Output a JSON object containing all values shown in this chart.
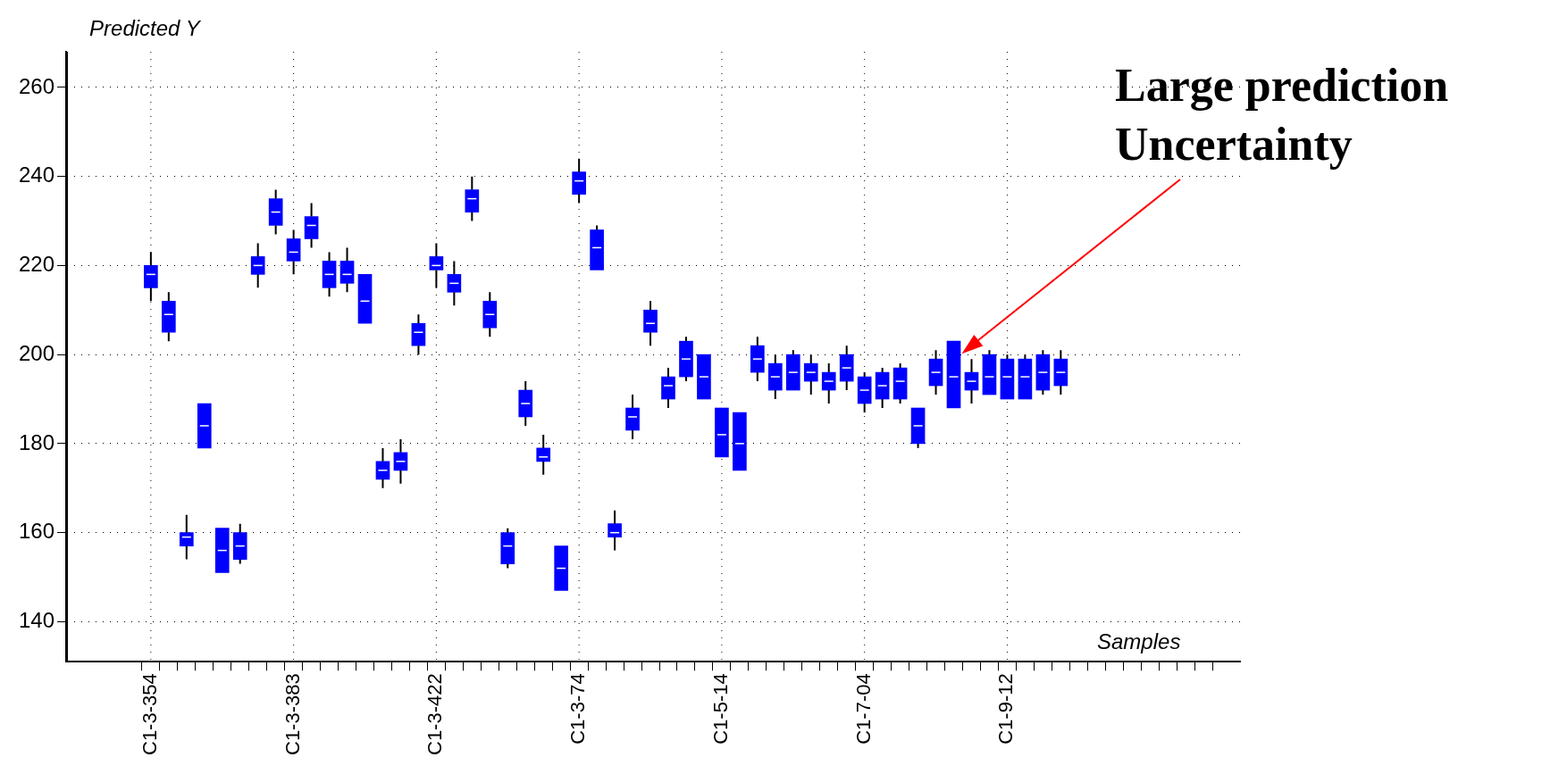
{
  "chart_data": {
    "type": "box",
    "ylabel": "Predicted Y",
    "xlabel": "Samples",
    "color": "#0000ff",
    "grid": true,
    "annotations": [
      "Large prediction Uncertainty"
    ],
    "categories": [
      "C1-3-354",
      null,
      null,
      null,
      null,
      null,
      null,
      null,
      "C1-3-383",
      null,
      null,
      null,
      null,
      null,
      null,
      null,
      "C1-3-422",
      null,
      null,
      null,
      null,
      null,
      null,
      null,
      "C1-3-74",
      null,
      null,
      null,
      null,
      null,
      null,
      null,
      "C1-5-14",
      null,
      null,
      null,
      null,
      null,
      null,
      null,
      "C1-7-04",
      null,
      null,
      null,
      null,
      null,
      null,
      null,
      "C1-9-12",
      null,
      null,
      null
    ],
    "ylim": [
      131,
      268
    ],
    "yticks": [
      140,
      160,
      180,
      200,
      220,
      240,
      260
    ],
    "boxes": [
      {
        "low": 212,
        "q1": 215,
        "median": 218,
        "q3": 220,
        "high": 223
      },
      {
        "low": 203,
        "q1": 205,
        "median": 209,
        "q3": 212,
        "high": 214
      },
      {
        "low": 154,
        "q1": 157,
        "median": 159,
        "q3": 160,
        "high": 164
      },
      {
        "low": 179,
        "q1": 179,
        "median": 184,
        "q3": 189,
        "high": 189
      },
      {
        "low": 151,
        "q1": 151,
        "median": 156,
        "q3": 161,
        "high": 161
      },
      {
        "low": 153,
        "q1": 154,
        "median": 157,
        "q3": 160,
        "high": 162
      },
      {
        "low": 215,
        "q1": 218,
        "median": 220,
        "q3": 222,
        "high": 225
      },
      {
        "low": 227,
        "q1": 229,
        "median": 232,
        "q3": 235,
        "high": 237
      },
      {
        "low": 218,
        "q1": 221,
        "median": 223,
        "q3": 226,
        "high": 228
      },
      {
        "low": 224,
        "q1": 226,
        "median": 229,
        "q3": 231,
        "high": 234
      },
      {
        "low": 213,
        "q1": 215,
        "median": 218,
        "q3": 221,
        "high": 223
      },
      {
        "low": 214,
        "q1": 216,
        "median": 218,
        "q3": 221,
        "high": 224
      },
      {
        "low": 207,
        "q1": 207,
        "median": 212,
        "q3": 218,
        "high": 218
      },
      {
        "low": 170,
        "q1": 172,
        "median": 174,
        "q3": 176,
        "high": 179
      },
      {
        "low": 171,
        "q1": 174,
        "median": 176,
        "q3": 178,
        "high": 181
      },
      {
        "low": 200,
        "q1": 202,
        "median": 205,
        "q3": 207,
        "high": 209
      },
      {
        "low": 215,
        "q1": 219,
        "median": 220,
        "q3": 222,
        "high": 225
      },
      {
        "low": 211,
        "q1": 214,
        "median": 216,
        "q3": 218,
        "high": 221
      },
      {
        "low": 230,
        "q1": 232,
        "median": 235,
        "q3": 237,
        "high": 240
      },
      {
        "low": 204,
        "q1": 206,
        "median": 209,
        "q3": 212,
        "high": 214
      },
      {
        "low": 152,
        "q1": 153,
        "median": 157,
        "q3": 160,
        "high": 161
      },
      {
        "low": 184,
        "q1": 186,
        "median": 189,
        "q3": 192,
        "high": 194
      },
      {
        "low": 173,
        "q1": 176,
        "median": 177,
        "q3": 179,
        "high": 182
      },
      {
        "low": 147,
        "q1": 147,
        "median": 152,
        "q3": 157,
        "high": 157
      },
      {
        "low": 234,
        "q1": 236,
        "median": 239,
        "q3": 241,
        "high": 244
      },
      {
        "low": 219,
        "q1": 219,
        "median": 224,
        "q3": 228,
        "high": 229
      },
      {
        "low": 156,
        "q1": 159,
        "median": 160,
        "q3": 162,
        "high": 165
      },
      {
        "low": 181,
        "q1": 183,
        "median": 186,
        "q3": 188,
        "high": 191
      },
      {
        "low": 202,
        "q1": 205,
        "median": 207,
        "q3": 210,
        "high": 212
      },
      {
        "low": 188,
        "q1": 190,
        "median": 193,
        "q3": 195,
        "high": 197
      },
      {
        "low": 194,
        "q1": 195,
        "median": 199,
        "q3": 203,
        "high": 204
      },
      {
        "low": 190,
        "q1": 190,
        "median": 195,
        "q3": 200,
        "high": 200
      },
      {
        "low": 177,
        "q1": 177,
        "median": 182,
        "q3": 188,
        "high": 188
      },
      {
        "low": 174,
        "q1": 174,
        "median": 180,
        "q3": 187,
        "high": 187
      },
      {
        "low": 194,
        "q1": 196,
        "median": 199,
        "q3": 202,
        "high": 204
      },
      {
        "low": 190,
        "q1": 192,
        "median": 195,
        "q3": 198,
        "high": 200
      },
      {
        "low": 192,
        "q1": 192,
        "median": 196,
        "q3": 200,
        "high": 201
      },
      {
        "low": 191,
        "q1": 194,
        "median": 196,
        "q3": 198,
        "high": 200
      },
      {
        "low": 189,
        "q1": 192,
        "median": 194,
        "q3": 196,
        "high": 198
      },
      {
        "low": 192,
        "q1": 194,
        "median": 197,
        "q3": 200,
        "high": 202
      },
      {
        "low": 187,
        "q1": 189,
        "median": 192,
        "q3": 195,
        "high": 196
      },
      {
        "low": 188,
        "q1": 190,
        "median": 193,
        "q3": 196,
        "high": 197
      },
      {
        "low": 189,
        "q1": 190,
        "median": 194,
        "q3": 197,
        "high": 198
      },
      {
        "low": 179,
        "q1": 180,
        "median": 184,
        "q3": 188,
        "high": 188
      },
      {
        "low": 191,
        "q1": 193,
        "median": 196,
        "q3": 199,
        "high": 201
      },
      {
        "low": 188,
        "q1": 188,
        "median": 195,
        "q3": 203,
        "high": 203
      },
      {
        "low": 189,
        "q1": 192,
        "median": 194,
        "q3": 196,
        "high": 199
      },
      {
        "low": 191,
        "q1": 191,
        "median": 195,
        "q3": 200,
        "high": 201
      },
      {
        "low": 190,
        "q1": 190,
        "median": 195,
        "q3": 199,
        "high": 200
      },
      {
        "low": 190,
        "q1": 190,
        "median": 195,
        "q3": 199,
        "high": 200
      },
      {
        "low": 191,
        "q1": 192,
        "median": 196,
        "q3": 200,
        "high": 201
      },
      {
        "low": 191,
        "q1": 193,
        "median": 196,
        "q3": 199,
        "high": 201
      }
    ]
  }
}
